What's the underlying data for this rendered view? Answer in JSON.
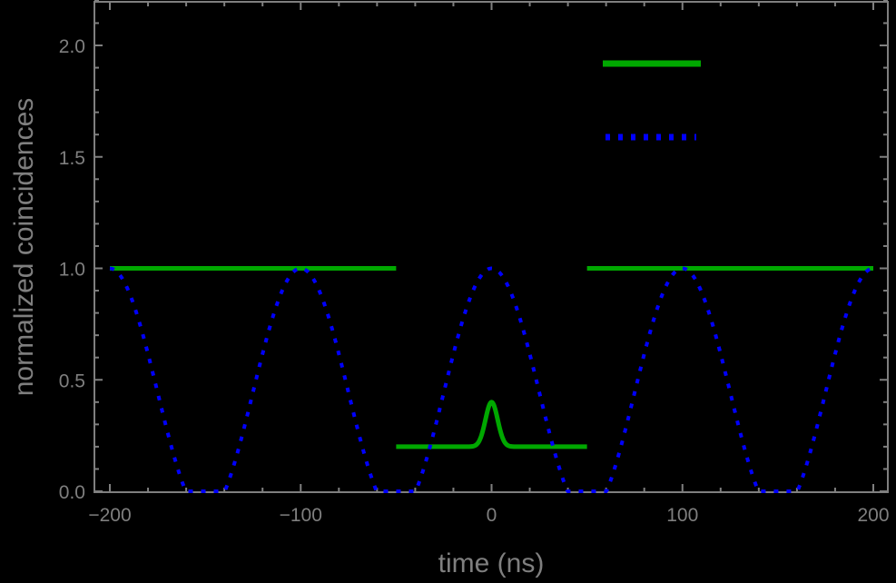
{
  "chart_data": {
    "type": "line",
    "title": "",
    "xlabel": "time (ns)",
    "ylabel": "normalized coincidences",
    "xlim": [
      -208,
      208
    ],
    "ylim": [
      0,
      2.2
    ],
    "grid": false,
    "background": "#000000",
    "axis_color": "#7f7f7f",
    "x_ticks": [
      -200,
      -100,
      0,
      100,
      200
    ],
    "x_tick_labels": [
      "−200",
      "−100",
      "0",
      "100",
      "200"
    ],
    "y_ticks": [
      0.0,
      0.5,
      1.0,
      1.5,
      2.0
    ],
    "y_tick_labels": [
      "0.0",
      "0.5",
      "1.0",
      "1.5",
      "2.0"
    ],
    "legend": {
      "position": "upper right",
      "entries": [
        {
          "style": "solid",
          "color": "#00a800",
          "label": ""
        },
        {
          "style": "dotted",
          "color": "#0000ff",
          "label": ""
        }
      ]
    },
    "series": [
      {
        "name": "green-solid",
        "style": "solid",
        "color": "#00a800",
        "segments": [
          {
            "x": [
              -200,
              -50
            ],
            "y": [
              1.0,
              1.0
            ]
          },
          {
            "x": [
              -50,
              -10,
              -6,
              -4,
              -2,
              0,
              2,
              4,
              6,
              10,
              50
            ],
            "y": [
              0.2,
              0.2,
              0.22,
              0.26,
              0.34,
              0.4,
              0.34,
              0.26,
              0.22,
              0.2,
              0.2
            ]
          },
          {
            "x": [
              50,
              200
            ],
            "y": [
              1.0,
              1.0
            ]
          }
        ],
        "peak": {
          "x": 0,
          "y": 0.4,
          "baseline": 0.2
        }
      },
      {
        "name": "blue-dotted",
        "style": "dotted",
        "color": "#0000ff",
        "x": [
          -200,
          -175,
          -160,
          -150,
          -140,
          -125,
          -100,
          -75,
          -60,
          -50,
          -40,
          -25,
          0,
          25,
          40,
          50,
          60,
          75,
          100,
          125,
          140,
          150,
          160,
          175,
          200
        ],
        "y": [
          1.0,
          0.39,
          0.0,
          0.0,
          0.0,
          0.39,
          1.0,
          0.39,
          0.0,
          0.0,
          0.0,
          0.39,
          1.0,
          0.39,
          0.0,
          0.0,
          0.0,
          0.39,
          1.0,
          0.39,
          0.0,
          0.0,
          0.0,
          0.39,
          1.0
        ]
      }
    ]
  }
}
